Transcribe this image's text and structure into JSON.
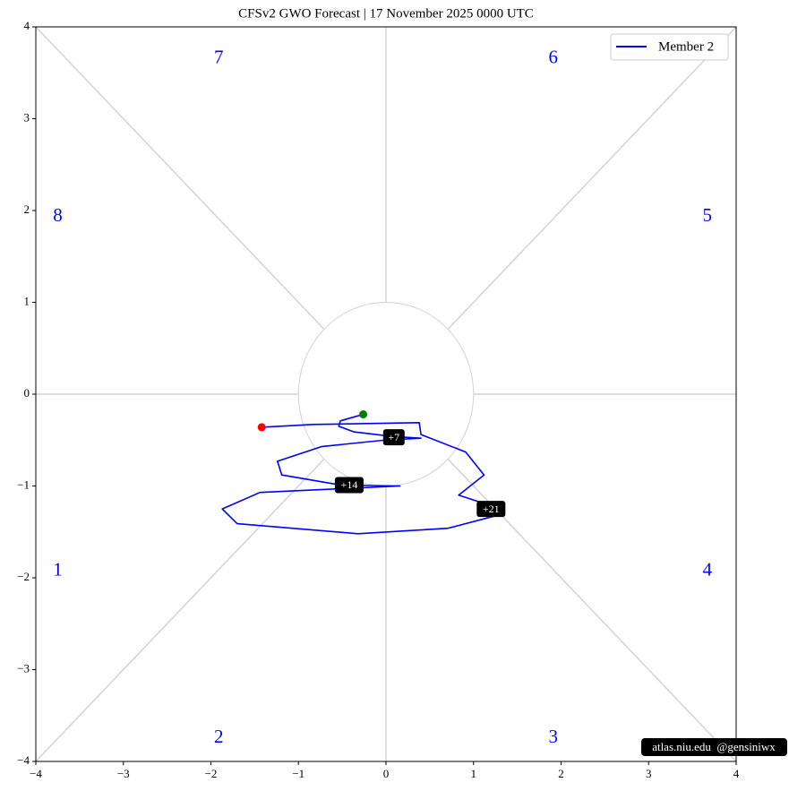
{
  "chart_data": {
    "type": "line",
    "title": "CFSv2 GWO Forecast   |   17  November  2025 0000 UTC",
    "xlim": [
      -4,
      4
    ],
    "ylim": [
      -4,
      4
    ],
    "xticks": [
      {
        "value": -4,
        "label": "−4"
      },
      {
        "value": -3,
        "label": "−3"
      },
      {
        "value": -2,
        "label": "−2"
      },
      {
        "value": -1,
        "label": "−1"
      },
      0,
      1,
      2,
      3,
      4
    ],
    "yticks": [
      {
        "value": -4,
        "label": "−4"
      },
      {
        "value": -3,
        "label": "−3"
      },
      {
        "value": -2,
        "label": "−2"
      },
      {
        "value": -1,
        "label": "−1"
      },
      0,
      1,
      2,
      3,
      4
    ],
    "legend": "upper right",
    "phase_labels": [
      "1",
      "2",
      "3",
      "4",
      "5",
      "6",
      "7",
      "8"
    ],
    "phase_label_color": "blue",
    "start_color": "green",
    "end_color": "red",
    "series": [
      {
        "name": "Member 2",
        "color": "blue",
        "x": [
          -0.26,
          -0.52,
          -0.54,
          -0.37,
          0.07,
          0.4,
          -0.01,
          -0.73,
          -1.24,
          -1.19,
          -0.52,
          0.16,
          -0.52,
          -1.44,
          -1.87,
          -1.7,
          -0.32,
          0.71,
          1.27,
          1.12,
          0.83,
          1.12,
          0.91,
          0.4,
          0.38,
          -0.83,
          -1.42
        ],
        "values": [
          -0.22,
          -0.29,
          -0.35,
          -0.41,
          -0.46,
          -0.48,
          -0.5,
          -0.57,
          -0.73,
          -0.88,
          -0.99,
          -1.0,
          -1.03,
          -1.07,
          -1.25,
          -1.41,
          -1.52,
          -1.46,
          -1.32,
          -1.19,
          -1.1,
          -0.88,
          -0.63,
          -0.44,
          -0.31,
          -0.33,
          -0.36
        ]
      }
    ],
    "annotations": [
      {
        "text": "+7",
        "x": 0.09,
        "y": -0.47
      },
      {
        "text": "+14",
        "x": -0.42,
        "y": -0.99
      },
      {
        "text": "+21",
        "x": 1.2,
        "y": -1.25
      }
    ],
    "watermark": "atlas.niu.edu  @gensiniwx"
  }
}
